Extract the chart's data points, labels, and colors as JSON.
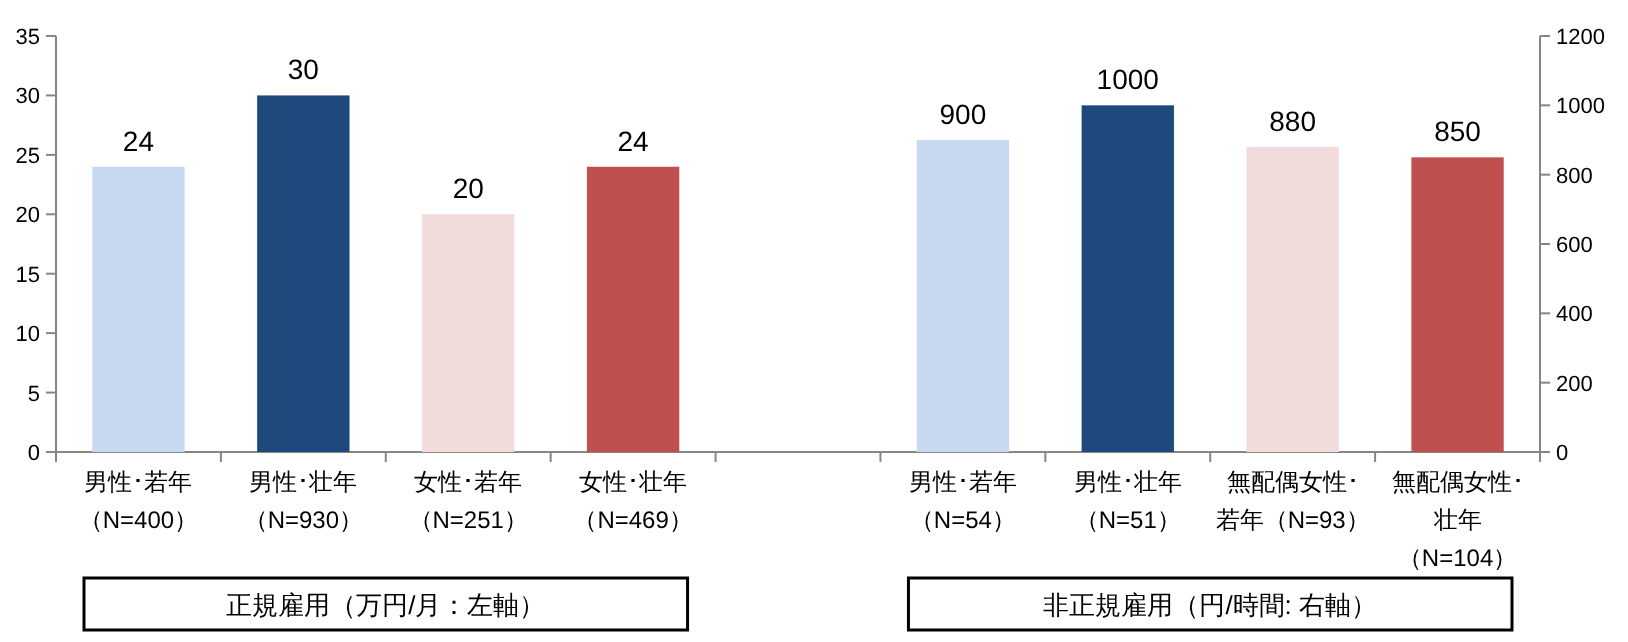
{
  "chart_data": {
    "type": "bar",
    "categories": [
      "男性･若年（N=400）",
      "男性･壮年（N=930）",
      "女性･若年（N=251）",
      "女性･壮年（N=469）",
      null,
      "男性･若年（N=54）",
      "男性･壮年（N=51）",
      "無配偶女性･若年（N=93）",
      "無配偶女性･壮年（N=104）"
    ],
    "series": [
      {
        "values": [
          24,
          30,
          20,
          24,
          null,
          null,
          null,
          null,
          null
        ],
        "colors": [
          "#c6d9f1",
          "#1f497d",
          "#f2dcdb",
          "#c0504d",
          null,
          null,
          null,
          null,
          null
        ]
      },
      {
        "axis": "y2",
        "values": [
          null,
          null,
          null,
          null,
          null,
          900,
          1000,
          880,
          850
        ],
        "colors": [
          null,
          null,
          null,
          null,
          null,
          "#c6d9f1",
          "#1f497d",
          "#f2dcdb",
          "#c0504d"
        ]
      }
    ],
    "ylim": [
      0,
      35
    ],
    "yticks": [
      0,
      5,
      10,
      15,
      20,
      25,
      30,
      35
    ],
    "y2lim": [
      0,
      1200
    ],
    "y2ticks": [
      0,
      200,
      400,
      600,
      800,
      1000,
      1200
    ],
    "data_labels": true,
    "grid": false,
    "annotations": [
      "正規雇用（万円/月：左軸）",
      "非正規雇用（円/時間: 右軸）"
    ]
  }
}
